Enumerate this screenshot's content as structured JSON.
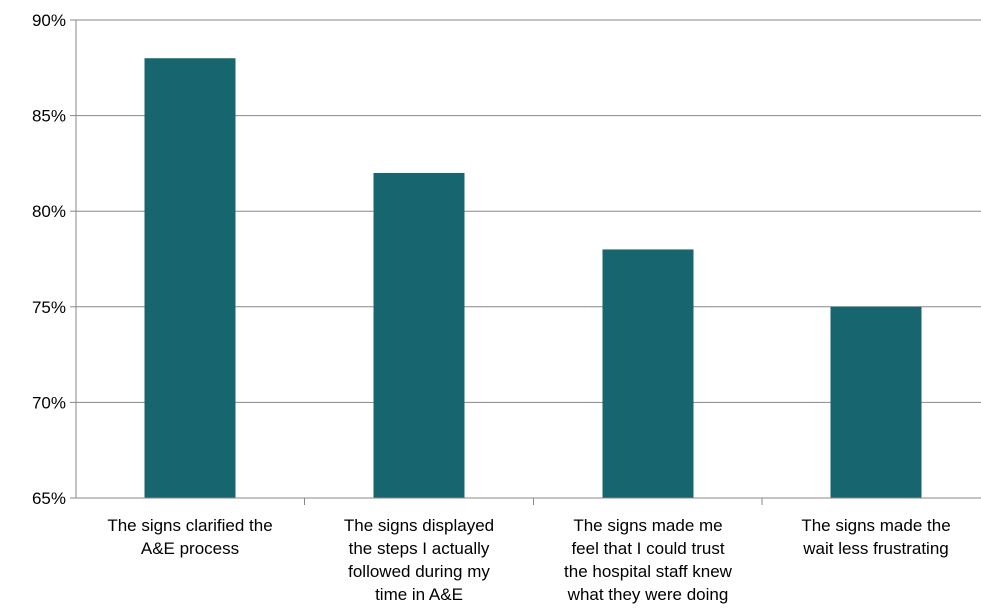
{
  "chart_data": {
    "type": "bar",
    "title": "",
    "xlabel": "",
    "ylabel": "",
    "categories": [
      [
        "The signs clarified the",
        "A&E process"
      ],
      [
        "The signs displayed",
        "the steps I actually",
        "followed during my",
        "time in A&E"
      ],
      [
        "The signs made me",
        "feel that I could trust",
        "the hospital staff knew",
        "what they were doing"
      ],
      [
        "The signs made the",
        "wait less frustrating"
      ]
    ],
    "values": [
      88,
      82,
      78,
      75
    ],
    "ylim": [
      65,
      90
    ],
    "yticks": [
      65,
      70,
      75,
      80,
      85,
      90
    ],
    "ytick_suffix": "%",
    "grid": true,
    "legend": "none",
    "bar_color": "#17656F"
  }
}
